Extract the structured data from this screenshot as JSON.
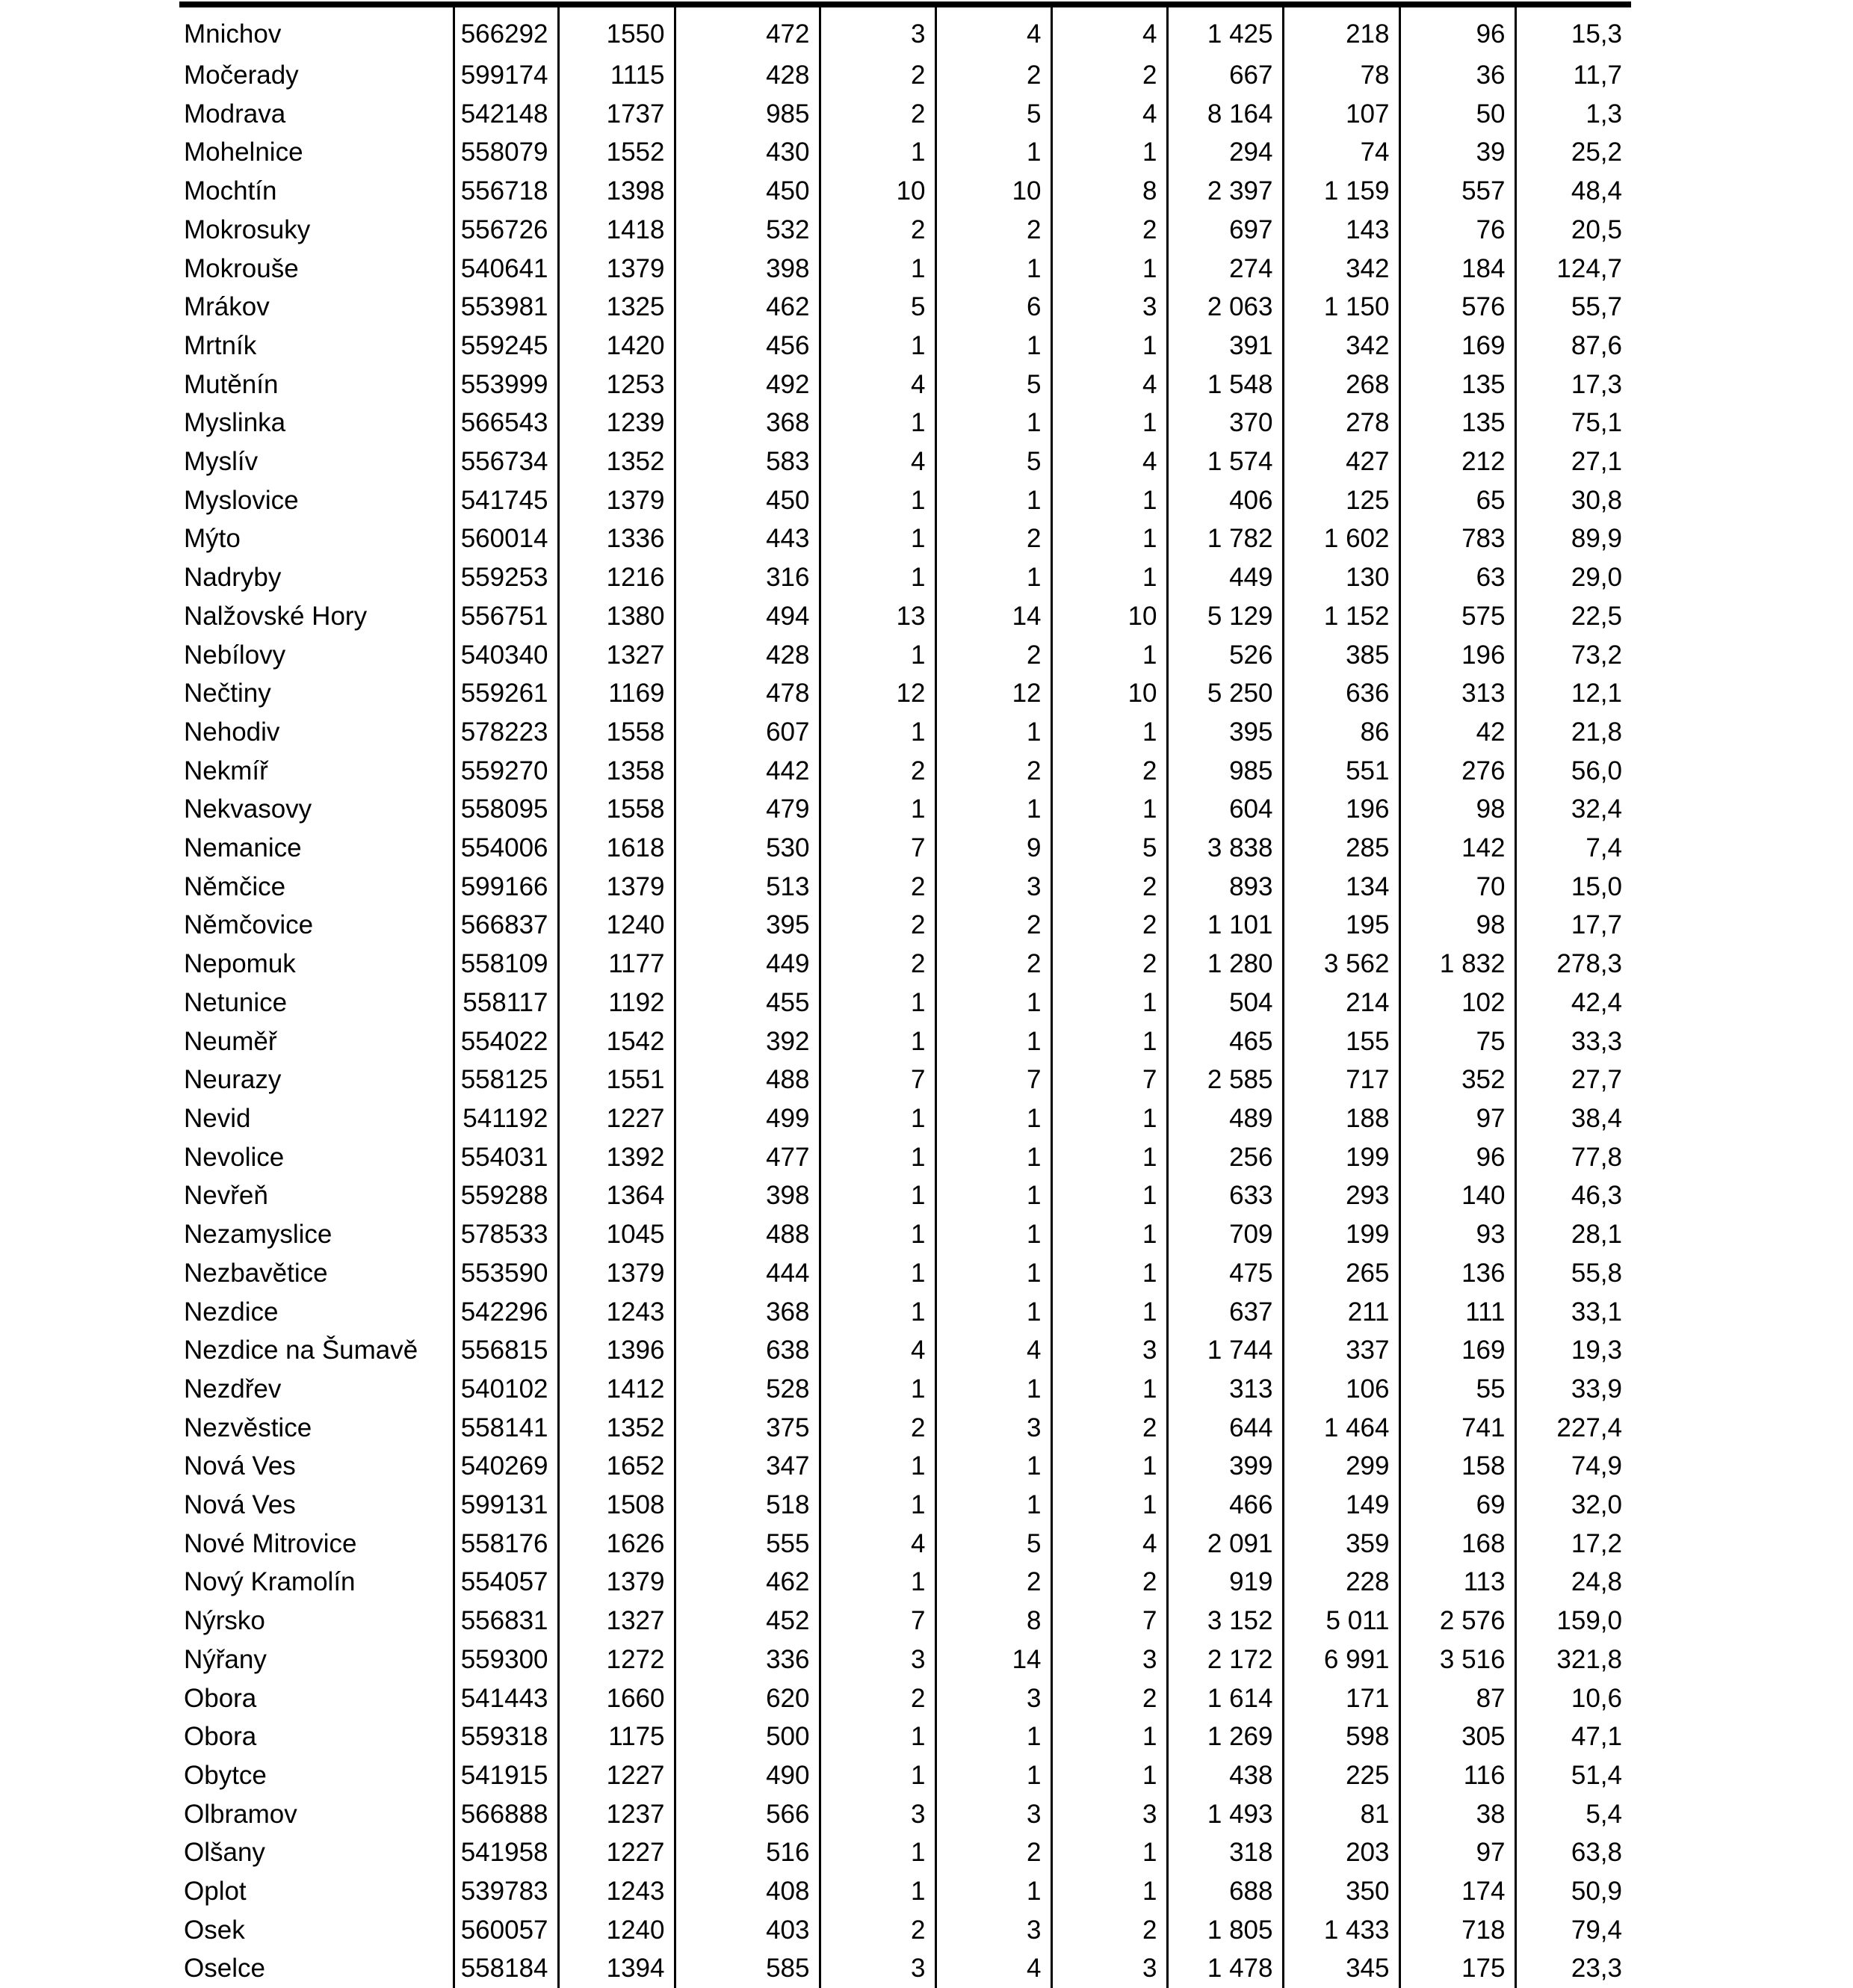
{
  "table": {
    "rows": [
      [
        "Mnichov",
        "566292",
        "1550",
        "472",
        "3",
        "4",
        "4",
        "1 425",
        "218",
        "96",
        "15,3"
      ],
      [
        "Močerady",
        "599174",
        "1115",
        "428",
        "2",
        "2",
        "2",
        "667",
        "78",
        "36",
        "11,7"
      ],
      [
        "Modrava",
        "542148",
        "1737",
        "985",
        "2",
        "5",
        "4",
        "8 164",
        "107",
        "50",
        "1,3"
      ],
      [
        "Mohelnice",
        "558079",
        "1552",
        "430",
        "1",
        "1",
        "1",
        "294",
        "74",
        "39",
        "25,2"
      ],
      [
        "Mochtín",
        "556718",
        "1398",
        "450",
        "10",
        "10",
        "8",
        "2 397",
        "1 159",
        "557",
        "48,4"
      ],
      [
        "Mokrosuky",
        "556726",
        "1418",
        "532",
        "2",
        "2",
        "2",
        "697",
        "143",
        "76",
        "20,5"
      ],
      [
        "Mokrouše",
        "540641",
        "1379",
        "398",
        "1",
        "1",
        "1",
        "274",
        "342",
        "184",
        "124,7"
      ],
      [
        "Mrákov",
        "553981",
        "1325",
        "462",
        "5",
        "6",
        "3",
        "2 063",
        "1 150",
        "576",
        "55,7"
      ],
      [
        "Mrtník",
        "559245",
        "1420",
        "456",
        "1",
        "1",
        "1",
        "391",
        "342",
        "169",
        "87,6"
      ],
      [
        "Mutěnín",
        "553999",
        "1253",
        "492",
        "4",
        "5",
        "4",
        "1 548",
        "268",
        "135",
        "17,3"
      ],
      [
        "Myslinka",
        "566543",
        "1239",
        "368",
        "1",
        "1",
        "1",
        "370",
        "278",
        "135",
        "75,1"
      ],
      [
        "Myslív",
        "556734",
        "1352",
        "583",
        "4",
        "5",
        "4",
        "1 574",
        "427",
        "212",
        "27,1"
      ],
      [
        "Myslovice",
        "541745",
        "1379",
        "450",
        "1",
        "1",
        "1",
        "406",
        "125",
        "65",
        "30,8"
      ],
      [
        "Mýto",
        "560014",
        "1336",
        "443",
        "1",
        "2",
        "1",
        "1 782",
        "1 602",
        "783",
        "89,9"
      ],
      [
        "Nadryby",
        "559253",
        "1216",
        "316",
        "1",
        "1",
        "1",
        "449",
        "130",
        "63",
        "29,0"
      ],
      [
        "Nalžovské Hory",
        "556751",
        "1380",
        "494",
        "13",
        "14",
        "10",
        "5 129",
        "1 152",
        "575",
        "22,5"
      ],
      [
        "Nebílovy",
        "540340",
        "1327",
        "428",
        "1",
        "2",
        "1",
        "526",
        "385",
        "196",
        "73,2"
      ],
      [
        "Nečtiny",
        "559261",
        "1169",
        "478",
        "12",
        "12",
        "10",
        "5 250",
        "636",
        "313",
        "12,1"
      ],
      [
        "Nehodiv",
        "578223",
        "1558",
        "607",
        "1",
        "1",
        "1",
        "395",
        "86",
        "42",
        "21,8"
      ],
      [
        "Nekmíř",
        "559270",
        "1358",
        "442",
        "2",
        "2",
        "2",
        "985",
        "551",
        "276",
        "56,0"
      ],
      [
        "Nekvasovy",
        "558095",
        "1558",
        "479",
        "1",
        "1",
        "1",
        "604",
        "196",
        "98",
        "32,4"
      ],
      [
        "Nemanice",
        "554006",
        "1618",
        "530",
        "7",
        "9",
        "5",
        "3 838",
        "285",
        "142",
        "7,4"
      ],
      [
        "Němčice",
        "599166",
        "1379",
        "513",
        "2",
        "3",
        "2",
        "893",
        "134",
        "70",
        "15,0"
      ],
      [
        "Němčovice",
        "566837",
        "1240",
        "395",
        "2",
        "2",
        "2",
        "1 101",
        "195",
        "98",
        "17,7"
      ],
      [
        "Nepomuk",
        "558109",
        "1177",
        "449",
        "2",
        "2",
        "2",
        "1 280",
        "3 562",
        "1 832",
        "278,3"
      ],
      [
        "Netunice",
        "558117",
        "1192",
        "455",
        "1",
        "1",
        "1",
        "504",
        "214",
        "102",
        "42,4"
      ],
      [
        "Neuměř",
        "554022",
        "1542",
        "392",
        "1",
        "1",
        "1",
        "465",
        "155",
        "75",
        "33,3"
      ],
      [
        "Neurazy",
        "558125",
        "1551",
        "488",
        "7",
        "7",
        "7",
        "2 585",
        "717",
        "352",
        "27,7"
      ],
      [
        "Nevid",
        "541192",
        "1227",
        "499",
        "1",
        "1",
        "1",
        "489",
        "188",
        "97",
        "38,4"
      ],
      [
        "Nevolice",
        "554031",
        "1392",
        "477",
        "1",
        "1",
        "1",
        "256",
        "199",
        "96",
        "77,8"
      ],
      [
        "Nevřeň",
        "559288",
        "1364",
        "398",
        "1",
        "1",
        "1",
        "633",
        "293",
        "140",
        "46,3"
      ],
      [
        "Nezamyslice",
        "578533",
        "1045",
        "488",
        "1",
        "1",
        "1",
        "709",
        "199",
        "93",
        "28,1"
      ],
      [
        "Nezbavětice",
        "553590",
        "1379",
        "444",
        "1",
        "1",
        "1",
        "475",
        "265",
        "136",
        "55,8"
      ],
      [
        "Nezdice",
        "542296",
        "1243",
        "368",
        "1",
        "1",
        "1",
        "637",
        "211",
        "111",
        "33,1"
      ],
      [
        "Nezdice na Šumavě",
        "556815",
        "1396",
        "638",
        "4",
        "4",
        "3",
        "1 744",
        "337",
        "169",
        "19,3"
      ],
      [
        "Nezdřev",
        "540102",
        "1412",
        "528",
        "1",
        "1",
        "1",
        "313",
        "106",
        "55",
        "33,9"
      ],
      [
        "Nezvěstice",
        "558141",
        "1352",
        "375",
        "2",
        "3",
        "2",
        "644",
        "1 464",
        "741",
        "227,4"
      ],
      [
        "Nová Ves",
        "540269",
        "1652",
        "347",
        "1",
        "1",
        "1",
        "399",
        "299",
        "158",
        "74,9"
      ],
      [
        "Nová Ves",
        "599131",
        "1508",
        "518",
        "1",
        "1",
        "1",
        "466",
        "149",
        "69",
        "32,0"
      ],
      [
        "Nové Mitrovice",
        "558176",
        "1626",
        "555",
        "4",
        "5",
        "4",
        "2 091",
        "359",
        "168",
        "17,2"
      ],
      [
        "Nový Kramolín",
        "554057",
        "1379",
        "462",
        "1",
        "2",
        "2",
        "919",
        "228",
        "113",
        "24,8"
      ],
      [
        "Nýrsko",
        "556831",
        "1327",
        "452",
        "7",
        "8",
        "7",
        "3 152",
        "5 011",
        "2 576",
        "159,0"
      ],
      [
        "Nýřany",
        "559300",
        "1272",
        "336",
        "3",
        "14",
        "3",
        "2 172",
        "6 991",
        "3 516",
        "321,8"
      ],
      [
        "Obora",
        "541443",
        "1660",
        "620",
        "2",
        "3",
        "2",
        "1 614",
        "171",
        "87",
        "10,6"
      ],
      [
        "Obora",
        "559318",
        "1175",
        "500",
        "1",
        "1",
        "1",
        "1 269",
        "598",
        "305",
        "47,1"
      ],
      [
        "Obytce",
        "541915",
        "1227",
        "490",
        "1",
        "1",
        "1",
        "438",
        "225",
        "116",
        "51,4"
      ],
      [
        "Olbramov",
        "566888",
        "1237",
        "566",
        "3",
        "3",
        "3",
        "1 493",
        "81",
        "38",
        "5,4"
      ],
      [
        "Olšany",
        "541958",
        "1227",
        "516",
        "1",
        "2",
        "1",
        "318",
        "203",
        "97",
        "63,8"
      ],
      [
        "Oplot",
        "539783",
        "1243",
        "408",
        "1",
        "1",
        "1",
        "688",
        "350",
        "174",
        "50,9"
      ],
      [
        "Osek",
        "560057",
        "1240",
        "403",
        "2",
        "3",
        "2",
        "1 805",
        "1 433",
        "718",
        "79,4"
      ],
      [
        "Oselce",
        "558184",
        "1394",
        "585",
        "3",
        "4",
        "3",
        "1 478",
        "345",
        "175",
        "23,3"
      ]
    ]
  }
}
